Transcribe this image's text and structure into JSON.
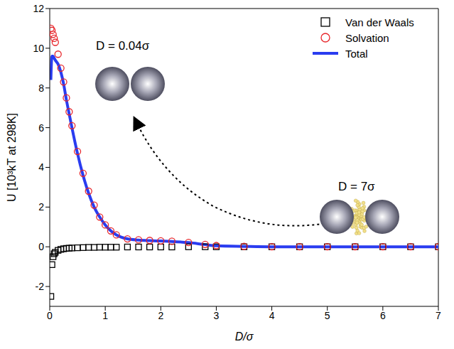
{
  "chart_data": {
    "type": "scatter",
    "x_label": "D/σ",
    "y_label": "U [10³kT at 298K]",
    "annotations": [
      "D = 0.04σ",
      "D = 7σ"
    ],
    "xlim": [
      0,
      7
    ],
    "xticks": [
      0,
      1,
      2,
      3,
      4,
      5,
      6,
      7
    ],
    "ylim": [
      -3,
      12
    ],
    "yticks": [
      -2,
      0,
      2,
      4,
      6,
      8,
      10,
      12
    ],
    "legend": "upper right",
    "grid": false,
    "x": [
      0.02,
      0.04,
      0.06,
      0.08,
      0.1,
      0.15,
      0.2,
      0.25,
      0.3,
      0.35,
      0.4,
      0.5,
      0.6,
      0.7,
      0.8,
      0.9,
      1.0,
      1.1,
      1.2,
      1.4,
      1.6,
      1.8,
      2.0,
      2.2,
      2.5,
      2.8,
      3.0,
      3.5,
      4,
      4.5,
      5,
      5.5,
      6,
      6.5,
      7
    ],
    "series": [
      {
        "name": "Van der Waals",
        "type": "scatter",
        "marker": "square",
        "color": "#000000",
        "values": [
          -2.5,
          -0.9,
          -0.5,
          -0.35,
          -0.28,
          -0.18,
          -0.13,
          -0.1,
          -0.08,
          -0.07,
          -0.06,
          -0.05,
          -0.04,
          -0.03,
          -0.03,
          -0.02,
          -0.02,
          -0.02,
          -0.02,
          -0.01,
          -0.01,
          -0.01,
          -0.01,
          -0.01,
          0,
          0,
          0,
          0,
          0,
          0,
          0,
          0,
          0,
          0,
          0
        ]
      },
      {
        "name": "Solvation",
        "type": "scatter",
        "marker": "circle",
        "color": "#e8262b",
        "values": [
          11.0,
          10.9,
          10.7,
          10.5,
          10.3,
          9.7,
          9.0,
          8.3,
          7.5,
          6.8,
          6.1,
          4.8,
          3.7,
          2.8,
          2.1,
          1.5,
          1.1,
          0.8,
          0.6,
          0.4,
          0.35,
          0.32,
          0.3,
          0.28,
          0.22,
          0.12,
          0.06,
          0.02,
          0,
          0,
          0,
          0,
          0,
          0,
          0
        ]
      },
      {
        "name": "Total",
        "type": "line",
        "line_style": "solid",
        "color": "#2a3cf0",
        "values": [
          8.4,
          9.6,
          9.6,
          9.5,
          9.4,
          9.2,
          8.8,
          8.2,
          7.4,
          6.7,
          6.0,
          4.7,
          3.6,
          2.7,
          2.0,
          1.5,
          1.1,
          0.8,
          0.6,
          0.4,
          0.34,
          0.31,
          0.29,
          0.27,
          0.21,
          0.11,
          0.05,
          0.02,
          0,
          0,
          0,
          0,
          0,
          0,
          0
        ]
      }
    ]
  }
}
